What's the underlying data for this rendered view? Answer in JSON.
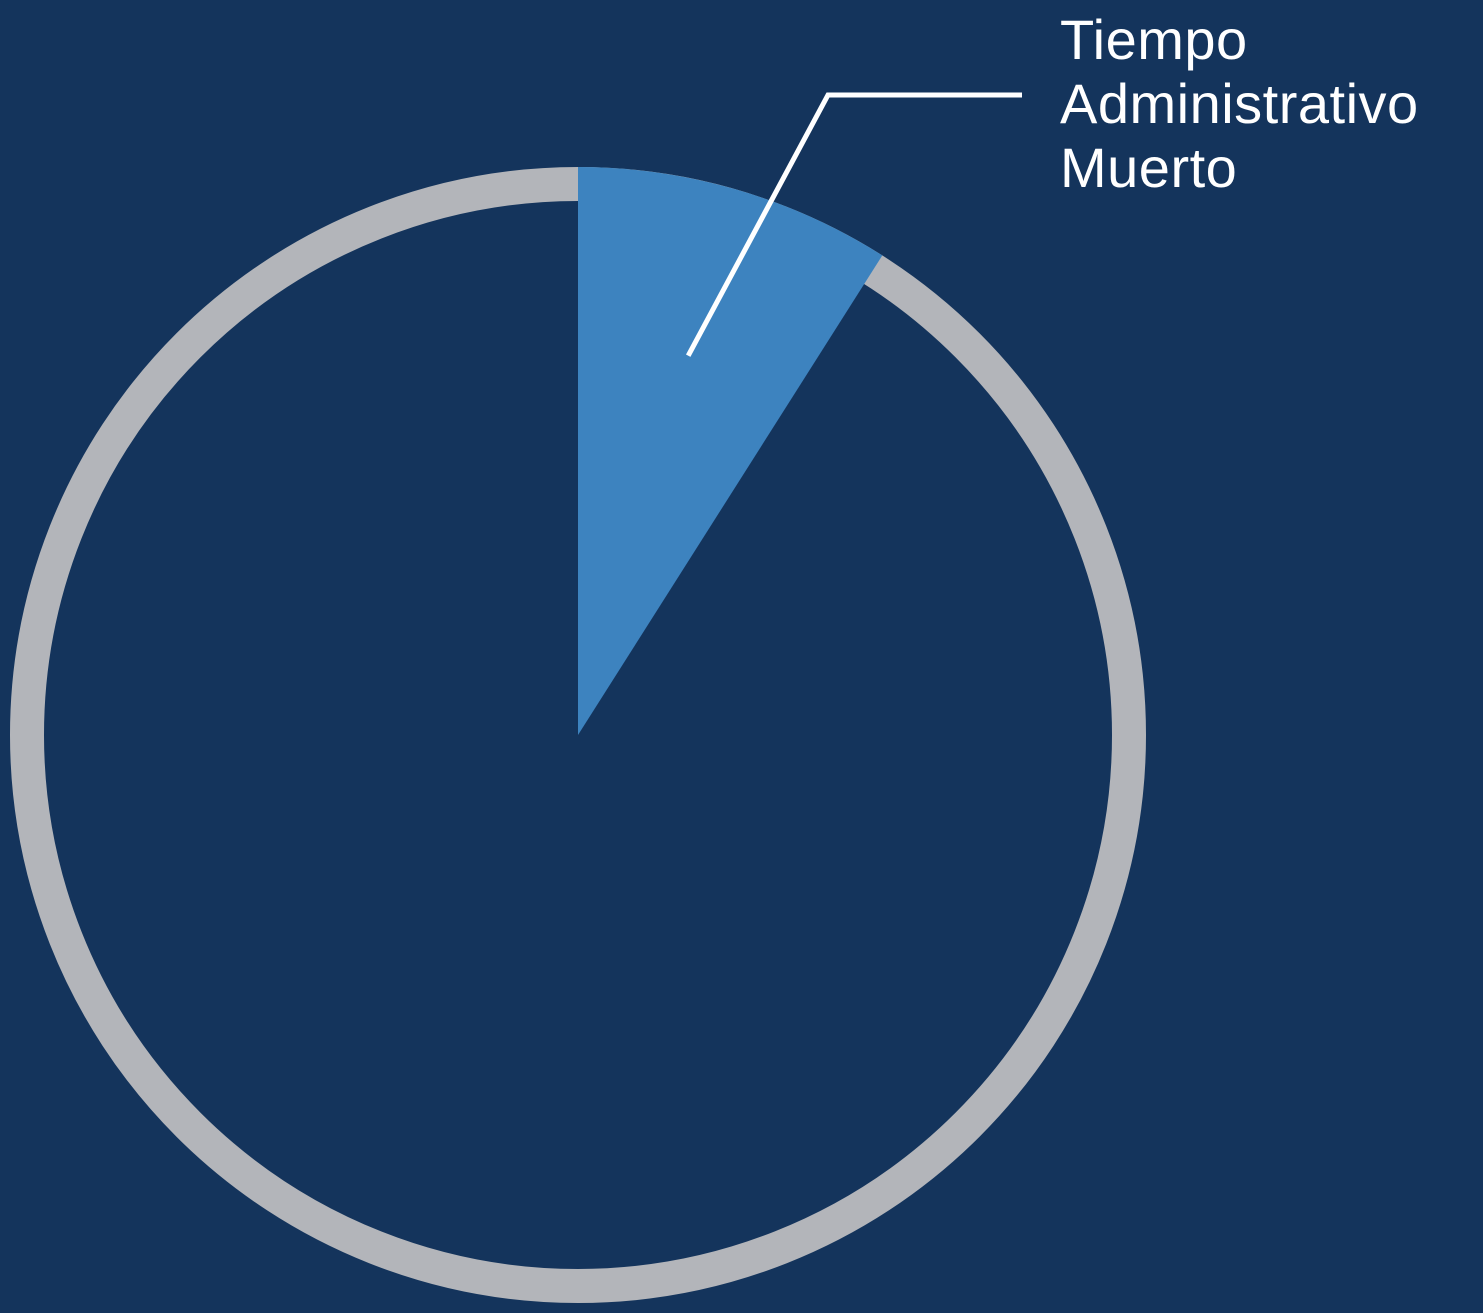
{
  "chart_data": {
    "type": "pie",
    "title": "",
    "slices": [
      {
        "label": "Tiempo Administrativo Muerto",
        "label_lines": [
          "Tiempo",
          "Administrativo",
          "Muerto"
        ],
        "value": 9,
        "color": "#3d83bf",
        "highlighted": true
      },
      {
        "label": "",
        "value": 91,
        "color": "#14345c",
        "highlighted": false
      }
    ],
    "start": "top",
    "direction": "clockwise",
    "ring_color": "#b3b5ba",
    "background_color": "#14345c",
    "legend": "none",
    "callout_color": "#ffffff"
  }
}
